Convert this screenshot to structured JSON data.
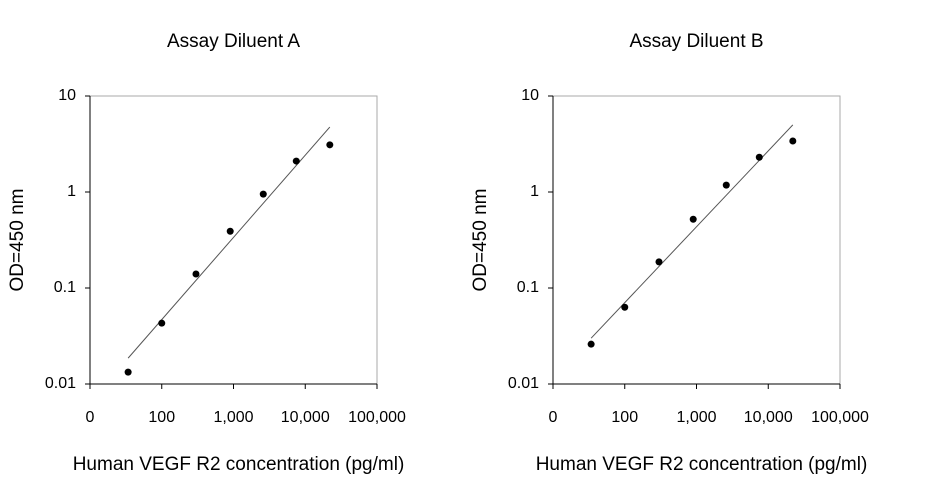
{
  "chart_data": [
    {
      "type": "scatter",
      "title": "Assay Diluent A",
      "xlabel": "Human VEGF R2 concentration (pg/ml)",
      "ylabel": "OD=450 nm",
      "x": [
        34,
        100,
        300,
        900,
        2600,
        7500,
        22000
      ],
      "values": [
        0.0133,
        0.043,
        0.14,
        0.39,
        0.95,
        2.1,
        3.1
      ],
      "color": "#000000",
      "fit": {
        "x": [
          34,
          22000
        ],
        "values": [
          0.0186,
          4.75
        ],
        "color": "#555555"
      },
      "xscale": "log",
      "yscale": "log",
      "xlim": [
        10,
        100000
      ],
      "xticks": [
        {
          "value": 10,
          "label": "0"
        },
        100,
        {
          "value": 1000,
          "label": "1,000"
        },
        {
          "value": 10000,
          "label": "10,000"
        },
        {
          "value": 100000,
          "label": "100,000"
        }
      ],
      "ylim": [
        0.01,
        10
      ],
      "yticks": [
        0.01,
        0.1,
        1,
        10
      ]
    },
    {
      "type": "scatter",
      "title": "Assay Diluent B",
      "xlabel": "Human VEGF R2 concentration (pg/ml)",
      "ylabel": "OD=450 nm",
      "x": [
        34,
        100,
        300,
        900,
        2600,
        7500,
        22000
      ],
      "values": [
        0.026,
        0.063,
        0.187,
        0.52,
        1.18,
        2.3,
        3.4
      ],
      "color": "#000000",
      "fit": {
        "x": [
          34,
          22000
        ],
        "values": [
          0.03,
          5.0
        ],
        "color": "#555555"
      },
      "xscale": "log",
      "yscale": "log",
      "xlim": [
        10,
        100000
      ],
      "xticks": [
        {
          "value": 10,
          "label": "0"
        },
        100,
        {
          "value": 1000,
          "label": "1,000"
        },
        {
          "value": 10000,
          "label": "10,000"
        },
        {
          "value": 100000,
          "label": "100,000"
        }
      ],
      "ylim": [
        0.01,
        10
      ],
      "yticks": [
        0.01,
        0.1,
        1,
        10
      ]
    }
  ]
}
